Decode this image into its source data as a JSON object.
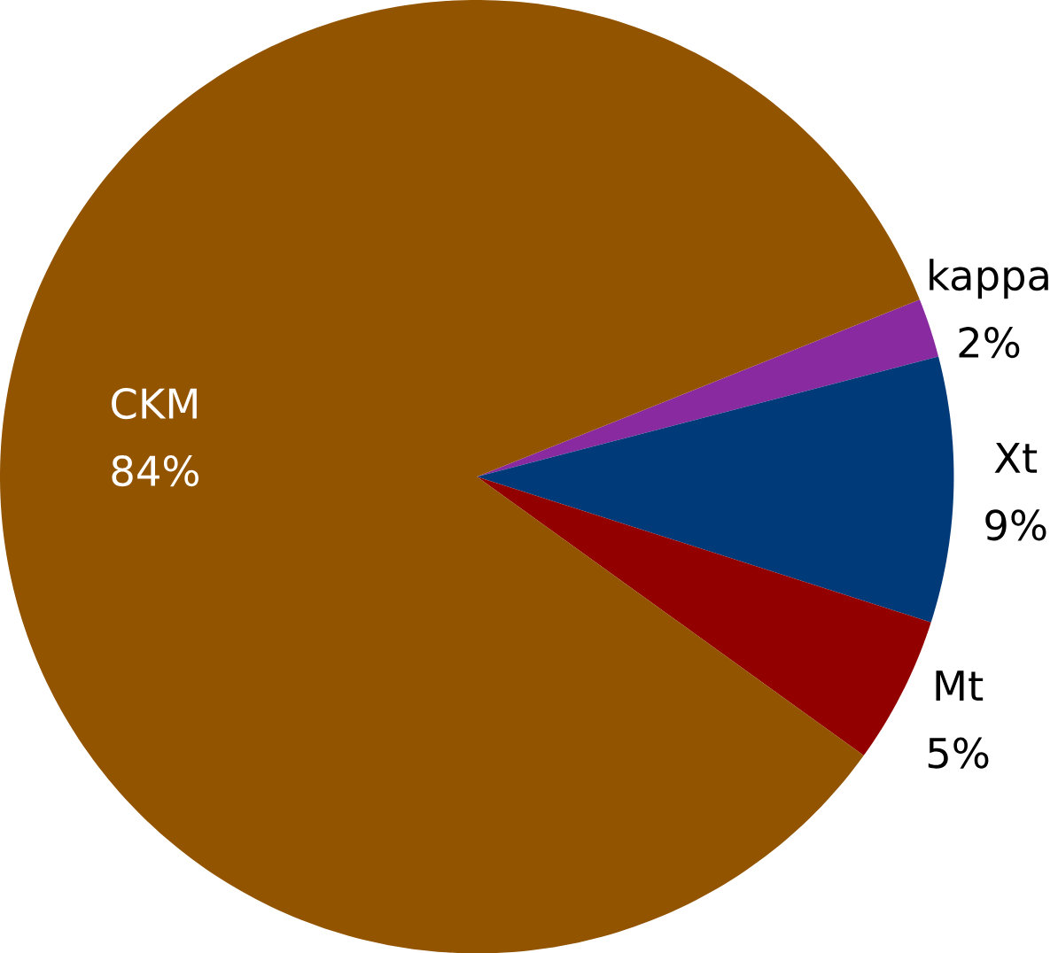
{
  "chart_data": {
    "type": "pie",
    "categories": [
      "CKM",
      "kappa",
      "Xt",
      "Mt"
    ],
    "values": [
      84,
      2,
      9,
      5
    ],
    "value_labels": [
      "84%",
      "2%",
      "9%",
      "5%"
    ],
    "colors": [
      "#935400",
      "#8a2aa0",
      "#003a78",
      "#920000"
    ]
  }
}
